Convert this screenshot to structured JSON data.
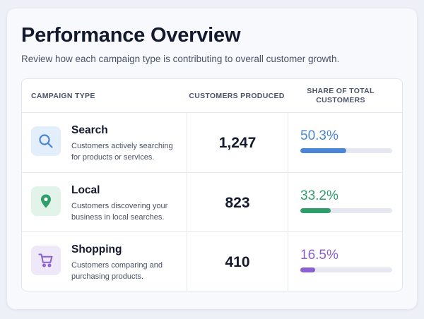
{
  "header": {
    "title": "Performance Overview",
    "subtitle": "Review how each campaign type is contributing to overall customer growth."
  },
  "table": {
    "columns": [
      "CAMPAIGN TYPE",
      "CUSTOMERS PRODUCED",
      "SHARE OF TOTAL CUSTOMERS"
    ],
    "rows": [
      {
        "name": "Search",
        "description": "Customers actively searching for products or services.",
        "icon": "search-icon",
        "customers": "1,247",
        "share": "50.3%",
        "share_fraction": 0.503,
        "accent_color": "#4a86d4",
        "icon_bg": "#e3eefb"
      },
      {
        "name": "Local",
        "description": "Customers discovering your business in local searches.",
        "icon": "map-pin-icon",
        "customers": "823",
        "share": "33.2%",
        "share_fraction": 0.332,
        "accent_color": "#2f9e6a",
        "icon_bg": "#e2f3ea"
      },
      {
        "name": "Shopping",
        "description": "Customers comparing and purchasing products.",
        "icon": "shopping-cart-icon",
        "customers": "410",
        "share": "16.5%",
        "share_fraction": 0.165,
        "accent_color": "#8a5fcf",
        "icon_bg": "#efe8f8"
      }
    ]
  }
}
